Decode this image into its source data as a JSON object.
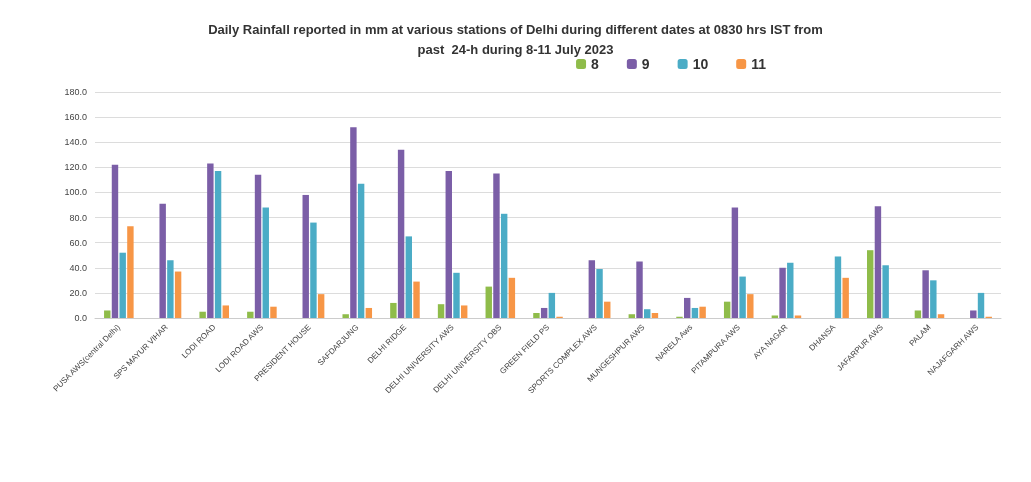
{
  "chart_data": {
    "type": "bar",
    "title": "Daily Rainfall reported in mm at various stations of Delhi during different dates at 0830 hrs IST from\npast  24-h during 8-11 July 2023",
    "categories": [
      "PUSA AWS(central Delhi)",
      "SPS MAYUR VIHAR",
      "LODI ROAD",
      "LODI ROAD AWS",
      "PRESIDENT HOUSE",
      "SAFDARJUNG",
      "DELHI RIDGE",
      "DELHI UNIVERSITY AWS",
      "DELHI UNIVERSITY OBS",
      "GREEN FIELD PS",
      "SPORTS COMPLEX AWS",
      "MUNGESHPUR AWS",
      "NARELA Aws",
      "PITAMPURA AWS",
      "AYA NAGAR",
      "DHANSA",
      "JAFARPUR AWS",
      "PALAM",
      "NAJAFGARH AWS"
    ],
    "series": [
      {
        "name": "8",
        "color": "#8fbc4a",
        "values": [
          6,
          null,
          5,
          5,
          null,
          3,
          12,
          11,
          25,
          4,
          null,
          3,
          1,
          13,
          2,
          null,
          54,
          6,
          null
        ]
      },
      {
        "name": "9",
        "color": "#7b5ea7",
        "values": [
          122,
          91,
          123,
          114,
          98,
          152,
          134,
          117,
          115,
          8,
          46,
          45,
          16,
          88,
          40,
          null,
          89,
          38,
          6
        ]
      },
      {
        "name": "10",
        "color": "#4bacc6",
        "values": [
          52,
          46,
          117,
          88,
          76,
          107,
          65,
          36,
          83,
          20,
          39,
          7,
          8,
          33,
          44,
          49,
          42,
          30,
          20
        ]
      },
      {
        "name": "11",
        "color": "#f79646",
        "values": [
          73,
          37,
          10,
          9,
          19,
          8,
          29,
          10,
          32,
          1,
          13,
          4,
          9,
          19,
          2,
          32,
          null,
          3,
          1
        ]
      }
    ],
    "ylim": [
      0,
      180
    ],
    "yticks": [
      {
        "value": 0,
        "label": "0.0"
      },
      {
        "value": 20,
        "label": "20.0"
      },
      {
        "value": 40,
        "label": "40.0"
      },
      {
        "value": 60,
        "label": "60.0"
      },
      {
        "value": 80,
        "label": "80.0"
      },
      {
        "value": 100,
        "label": "100.0"
      },
      {
        "value": 120,
        "label": "120.0"
      },
      {
        "value": 140,
        "label": "140.0"
      },
      {
        "value": 160,
        "label": "160.0"
      },
      {
        "value": 180,
        "label": "180.0"
      }
    ],
    "grid": "y",
    "legend": "top right"
  }
}
